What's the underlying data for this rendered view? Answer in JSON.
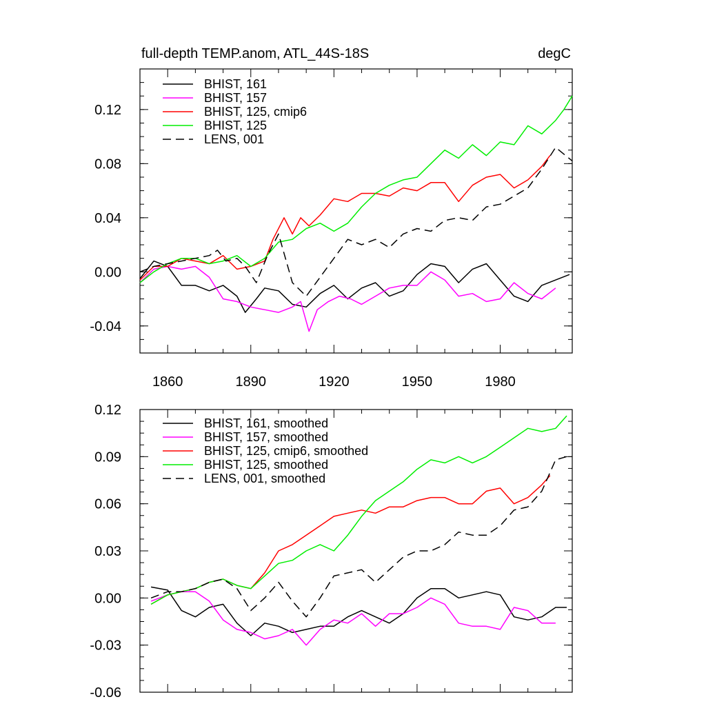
{
  "chart_data": [
    {
      "type": "line",
      "title": "full-depth TEMP.anom, ATL_44S-18S",
      "units_label": "degC",
      "xlabel": "",
      "ylabel": "",
      "xlim": [
        1850,
        2006
      ],
      "ylim": [
        -0.06,
        0.15
      ],
      "x_ticks": [
        1860,
        1890,
        1920,
        1950,
        1980
      ],
      "x_tick_labels": [
        "1860",
        "1890",
        "1920",
        "1950",
        "1980"
      ],
      "y_ticks": [
        -0.04,
        0.0,
        0.04,
        0.08,
        0.12
      ],
      "y_tick_labels": [
        "-0.04",
        "0.00",
        "0.04",
        "0.08",
        "0.12"
      ],
      "legend_position": "top-left",
      "series": [
        {
          "name": "BHIST, 161",
          "label": "BHIST, 161",
          "color": "#000000",
          "dash": "solid",
          "x": [
            1850,
            1855,
            1860,
            1865,
            1870,
            1875,
            1880,
            1885,
            1888,
            1892,
            1895,
            1900,
            1905,
            1910,
            1915,
            1920,
            1925,
            1930,
            1935,
            1940,
            1945,
            1950,
            1955,
            1960,
            1965,
            1970,
            1975,
            1980,
            1985,
            1990,
            1995,
            2000,
            2005
          ],
          "values": [
            -0.005,
            0.008,
            0.004,
            -0.01,
            -0.01,
            -0.014,
            -0.01,
            -0.018,
            -0.03,
            -0.02,
            -0.012,
            -0.014,
            -0.024,
            -0.026,
            -0.016,
            -0.01,
            -0.02,
            -0.012,
            -0.008,
            -0.018,
            -0.014,
            -0.002,
            0.006,
            0.004,
            -0.008,
            0.002,
            0.006,
            -0.006,
            -0.018,
            -0.022,
            -0.01,
            -0.006,
            -0.002
          ]
        },
        {
          "name": "BHIST, 157",
          "label": "BHIST, 157",
          "color": "#ff00ff",
          "dash": "solid",
          "x": [
            1850,
            1855,
            1860,
            1865,
            1870,
            1875,
            1880,
            1885,
            1890,
            1895,
            1900,
            1905,
            1908,
            1911,
            1914,
            1918,
            1922,
            1926,
            1930,
            1935,
            1940,
            1945,
            1950,
            1955,
            1960,
            1965,
            1970,
            1975,
            1980,
            1985,
            1990,
            1995,
            2000
          ],
          "values": [
            -0.008,
            0.002,
            0.004,
            0.002,
            0.004,
            -0.004,
            -0.02,
            -0.022,
            -0.026,
            -0.028,
            -0.03,
            -0.026,
            -0.022,
            -0.044,
            -0.028,
            -0.022,
            -0.018,
            -0.02,
            -0.024,
            -0.018,
            -0.012,
            -0.01,
            -0.01,
            0.0,
            -0.006,
            -0.018,
            -0.016,
            -0.022,
            -0.02,
            -0.008,
            -0.016,
            -0.02,
            -0.012
          ]
        },
        {
          "name": "BHIST, 125, cmip6",
          "label": "BHIST, 125, cmip6",
          "color": "#ff0000",
          "dash": "solid",
          "x": [
            1850,
            1855,
            1860,
            1865,
            1870,
            1875,
            1880,
            1885,
            1890,
            1895,
            1898,
            1902,
            1905,
            1908,
            1911,
            1915,
            1920,
            1925,
            1930,
            1935,
            1940,
            1945,
            1950,
            1955,
            1960,
            1965,
            1970,
            1975,
            1980,
            1985,
            1990,
            1995,
            1998
          ],
          "values": [
            -0.006,
            0.004,
            0.004,
            0.01,
            0.008,
            0.006,
            0.012,
            0.002,
            0.004,
            0.008,
            0.024,
            0.04,
            0.028,
            0.04,
            0.034,
            0.042,
            0.054,
            0.052,
            0.058,
            0.058,
            0.056,
            0.062,
            0.06,
            0.066,
            0.066,
            0.052,
            0.064,
            0.07,
            0.072,
            0.062,
            0.068,
            0.078,
            0.086
          ]
        },
        {
          "name": "BHIST, 125",
          "label": "BHIST, 125",
          "color": "#00ee00",
          "dash": "solid",
          "x": [
            1850,
            1855,
            1860,
            1865,
            1870,
            1875,
            1880,
            1885,
            1890,
            1895,
            1900,
            1905,
            1910,
            1915,
            1920,
            1925,
            1930,
            1935,
            1940,
            1945,
            1950,
            1955,
            1960,
            1965,
            1970,
            1975,
            1980,
            1985,
            1990,
            1995,
            2000,
            2003,
            2006
          ],
          "values": [
            -0.008,
            0.0,
            0.006,
            0.01,
            0.01,
            0.006,
            0.008,
            0.012,
            0.004,
            0.01,
            0.022,
            0.024,
            0.032,
            0.036,
            0.03,
            0.036,
            0.048,
            0.058,
            0.064,
            0.068,
            0.07,
            0.08,
            0.09,
            0.084,
            0.094,
            0.086,
            0.096,
            0.094,
            0.108,
            0.102,
            0.112,
            0.12,
            0.13
          ]
        },
        {
          "name": "LENS, 001",
          "label": "LENS, 001",
          "color": "#000000",
          "dash": "dashed",
          "x": [
            1850,
            1855,
            1860,
            1865,
            1870,
            1875,
            1878,
            1881,
            1885,
            1888,
            1892,
            1896,
            1900,
            1905,
            1910,
            1915,
            1920,
            1925,
            1930,
            1935,
            1940,
            1945,
            1950,
            1955,
            1960,
            1965,
            1970,
            1975,
            1980,
            1985,
            1990,
            1995,
            2000,
            2006
          ],
          "values": [
            0.0,
            0.004,
            0.006,
            0.008,
            0.01,
            0.012,
            0.016,
            0.008,
            0.01,
            0.004,
            -0.008,
            0.012,
            0.028,
            -0.008,
            -0.018,
            -0.004,
            0.01,
            0.024,
            0.02,
            0.024,
            0.018,
            0.028,
            0.032,
            0.03,
            0.038,
            0.04,
            0.038,
            0.048,
            0.05,
            0.056,
            0.062,
            0.076,
            0.092,
            0.082
          ]
        }
      ]
    },
    {
      "type": "line",
      "title": "",
      "xlabel": "",
      "ylabel": "",
      "xlim": [
        1850,
        2006
      ],
      "ylim": [
        -0.06,
        0.12
      ],
      "x_ticks": [
        1860,
        1890,
        1920,
        1950,
        1980
      ],
      "y_ticks": [
        -0.06,
        -0.03,
        0.0,
        0.03,
        0.06,
        0.09,
        0.12
      ],
      "y_tick_labels": [
        "-0.06",
        "-0.03",
        "0.00",
        "0.03",
        "0.06",
        "0.09",
        "0.12"
      ],
      "legend_position": "top-left",
      "series": [
        {
          "name": "BHIST, 161, smoothed",
          "label": "BHIST, 161, smoothed",
          "color": "#000000",
          "dash": "solid",
          "x": [
            1854,
            1860,
            1865,
            1870,
            1875,
            1880,
            1885,
            1890,
            1895,
            1900,
            1905,
            1910,
            1915,
            1920,
            1925,
            1930,
            1935,
            1940,
            1945,
            1950,
            1955,
            1960,
            1965,
            1970,
            1975,
            1980,
            1985,
            1990,
            1995,
            2000,
            2004
          ],
          "values": [
            0.007,
            0.005,
            -0.008,
            -0.012,
            -0.006,
            -0.004,
            -0.016,
            -0.024,
            -0.016,
            -0.018,
            -0.022,
            -0.02,
            -0.018,
            -0.018,
            -0.012,
            -0.008,
            -0.012,
            -0.016,
            -0.01,
            0.0,
            0.006,
            0.006,
            0.0,
            0.002,
            0.004,
            0.002,
            -0.012,
            -0.014,
            -0.012,
            -0.006,
            -0.006
          ]
        },
        {
          "name": "BHIST, 157, smoothed",
          "label": "BHIST, 157, smoothed",
          "color": "#ff00ff",
          "dash": "solid",
          "x": [
            1854,
            1860,
            1865,
            1870,
            1875,
            1880,
            1885,
            1890,
            1895,
            1900,
            1905,
            1910,
            1915,
            1920,
            1925,
            1930,
            1935,
            1940,
            1945,
            1950,
            1955,
            1960,
            1965,
            1970,
            1975,
            1980,
            1985,
            1990,
            1995,
            2000
          ],
          "values": [
            -0.002,
            0.002,
            0.004,
            0.004,
            -0.002,
            -0.014,
            -0.02,
            -0.022,
            -0.026,
            -0.024,
            -0.02,
            -0.03,
            -0.02,
            -0.014,
            -0.016,
            -0.01,
            -0.018,
            -0.01,
            -0.01,
            -0.006,
            0.0,
            -0.004,
            -0.016,
            -0.018,
            -0.018,
            -0.02,
            -0.006,
            -0.008,
            -0.016,
            -0.016
          ]
        },
        {
          "name": "BHIST, 125, cmip6, smoothed",
          "label": "BHIST, 125, cmip6, smoothed",
          "color": "#ff0000",
          "dash": "solid",
          "x": [
            1854,
            1860,
            1865,
            1870,
            1875,
            1880,
            1885,
            1890,
            1895,
            1900,
            1905,
            1910,
            1915,
            1920,
            1925,
            1930,
            1935,
            1940,
            1945,
            1950,
            1955,
            1960,
            1965,
            1970,
            1975,
            1980,
            1985,
            1990,
            1995,
            1998
          ],
          "values": [
            -0.004,
            0.002,
            0.004,
            0.006,
            0.01,
            0.012,
            0.008,
            0.006,
            0.016,
            0.03,
            0.034,
            0.04,
            0.046,
            0.052,
            0.054,
            0.056,
            0.054,
            0.058,
            0.058,
            0.062,
            0.064,
            0.064,
            0.06,
            0.06,
            0.068,
            0.07,
            0.06,
            0.064,
            0.072,
            0.078
          ]
        },
        {
          "name": "BHIST, 125, smoothed",
          "label": "BHIST, 125, smoothed",
          "color": "#00ee00",
          "dash": "solid",
          "x": [
            1854,
            1860,
            1865,
            1870,
            1875,
            1880,
            1885,
            1890,
            1895,
            1900,
            1905,
            1910,
            1915,
            1920,
            1925,
            1930,
            1935,
            1940,
            1945,
            1950,
            1955,
            1960,
            1965,
            1970,
            1975,
            1980,
            1985,
            1990,
            1995,
            2000,
            2004
          ],
          "values": [
            -0.004,
            0.002,
            0.004,
            0.006,
            0.01,
            0.012,
            0.008,
            0.006,
            0.014,
            0.022,
            0.024,
            0.03,
            0.034,
            0.03,
            0.04,
            0.052,
            0.062,
            0.068,
            0.074,
            0.082,
            0.088,
            0.086,
            0.09,
            0.086,
            0.09,
            0.096,
            0.102,
            0.108,
            0.106,
            0.108,
            0.116
          ]
        },
        {
          "name": "LENS, 001, smoothed",
          "label": "LENS, 001, smoothed",
          "color": "#000000",
          "dash": "dashed",
          "x": [
            1854,
            1860,
            1865,
            1870,
            1875,
            1880,
            1885,
            1890,
            1895,
            1900,
            1905,
            1910,
            1915,
            1920,
            1925,
            1930,
            1935,
            1940,
            1945,
            1950,
            1955,
            1960,
            1965,
            1970,
            1975,
            1980,
            1985,
            1990,
            1995,
            2000,
            2004
          ],
          "values": [
            0.0,
            0.004,
            0.004,
            0.006,
            0.01,
            0.012,
            0.006,
            -0.008,
            0.0,
            0.01,
            -0.002,
            -0.012,
            0.0,
            0.014,
            0.016,
            0.018,
            0.01,
            0.018,
            0.026,
            0.03,
            0.03,
            0.034,
            0.042,
            0.04,
            0.04,
            0.046,
            0.056,
            0.058,
            0.068,
            0.088,
            0.09
          ]
        }
      ]
    }
  ]
}
